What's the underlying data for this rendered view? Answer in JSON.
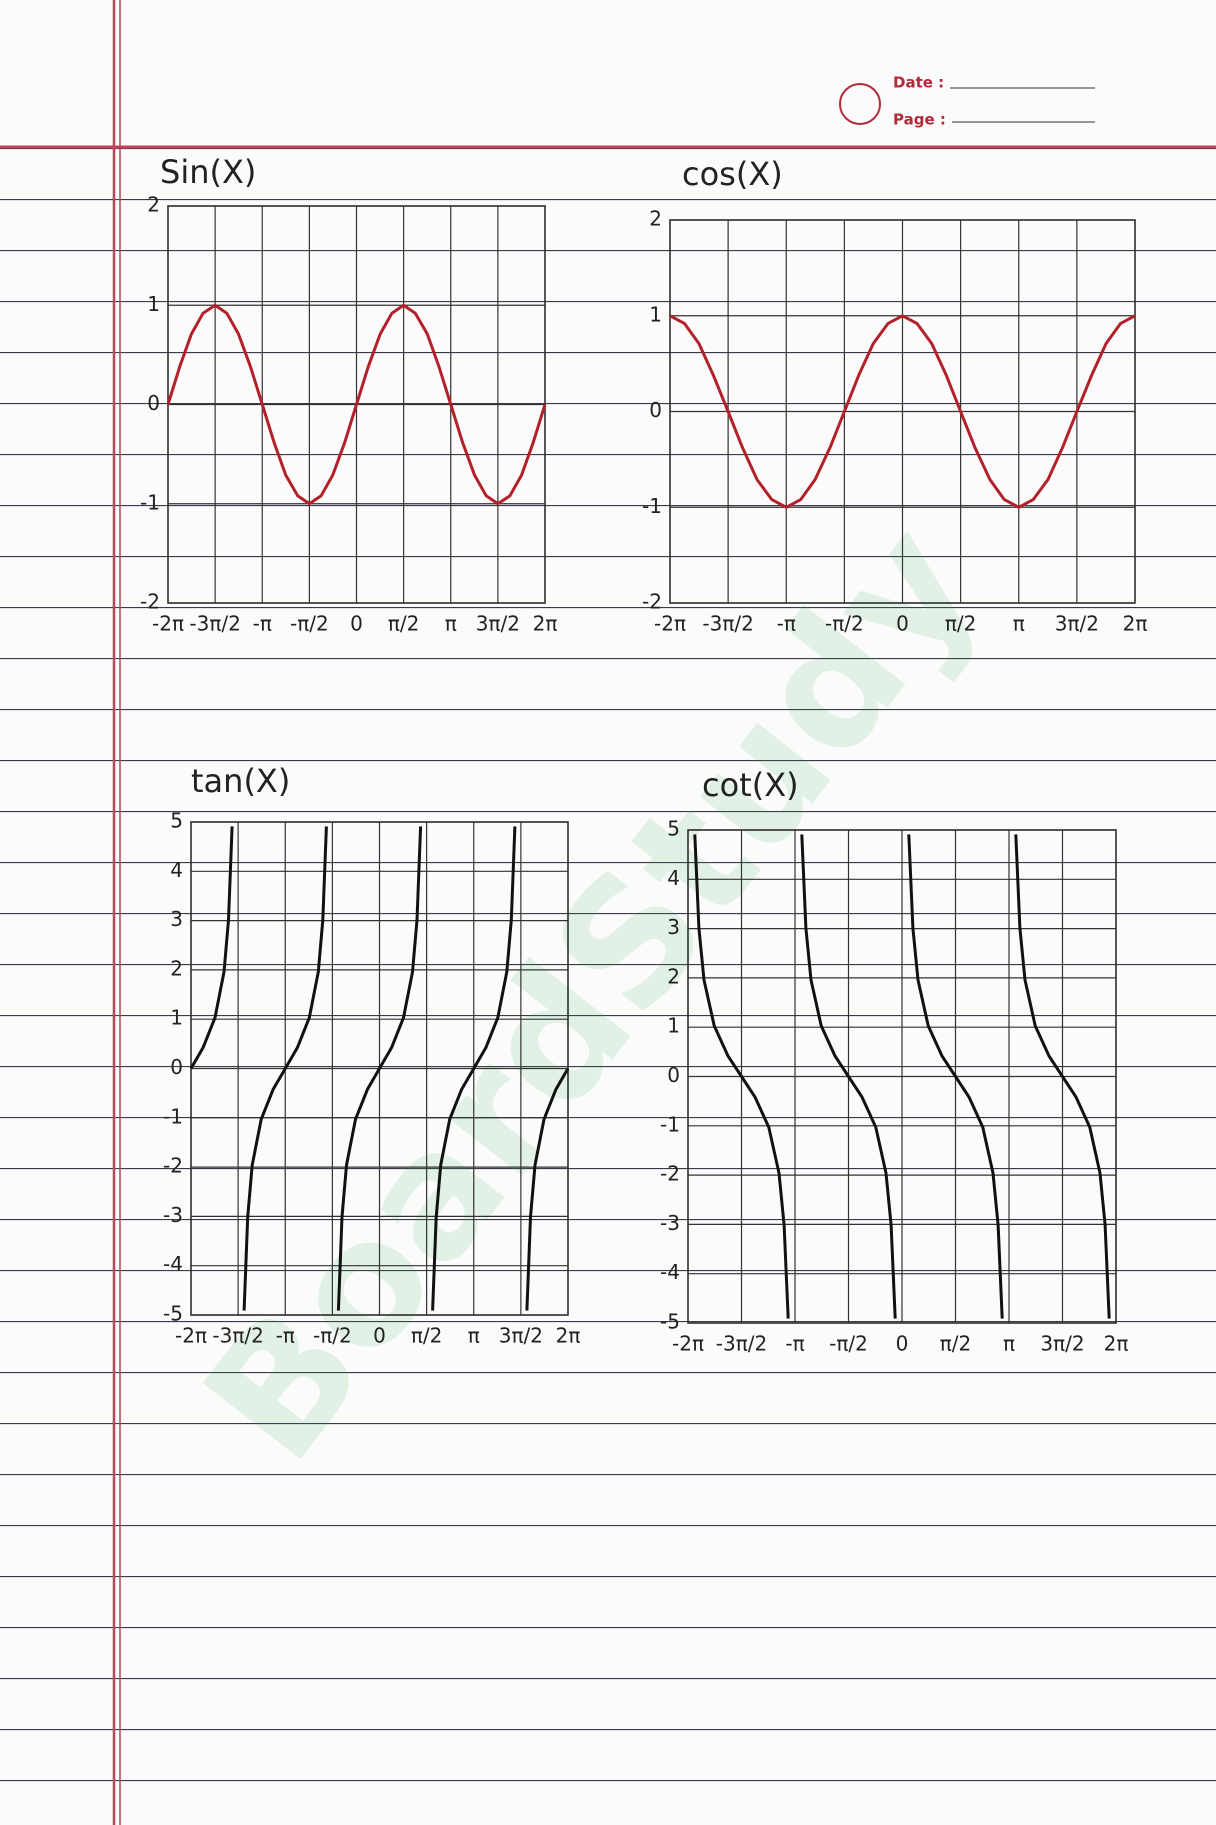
{
  "header": {
    "date_label": "Date :",
    "page_label": "Page :"
  },
  "watermark": "BoardStudy",
  "chart_data": [
    {
      "type": "line",
      "title": "Sin(X)",
      "color": "#b3202a",
      "grid": true,
      "x": [
        -6.28,
        -5.89,
        -5.5,
        -5.11,
        -4.71,
        -4.32,
        -3.93,
        -3.53,
        -3.14,
        -2.75,
        -2.36,
        -1.96,
        -1.57,
        -1.18,
        -0.79,
        -0.39,
        0,
        0.39,
        0.79,
        1.18,
        1.57,
        1.96,
        2.36,
        2.75,
        3.14,
        3.53,
        3.93,
        4.32,
        4.71,
        5.11,
        5.5,
        5.89,
        6.28
      ],
      "values": [
        0,
        0.38,
        0.71,
        0.92,
        1,
        0.92,
        0.71,
        0.38,
        0,
        -0.38,
        -0.71,
        -0.92,
        -1,
        -0.92,
        -0.71,
        -0.38,
        0,
        0.38,
        0.71,
        0.92,
        1,
        0.92,
        0.71,
        0.38,
        0,
        -0.38,
        -0.71,
        -0.92,
        -1,
        -0.92,
        -0.71,
        -0.38,
        0
      ],
      "xlim": [
        -6.28,
        6.28
      ],
      "xticks": [
        {
          "value": -6.28,
          "label": "-2π"
        },
        {
          "value": -4.71,
          "label": "-3π/2"
        },
        {
          "value": -3.14,
          "label": "-π"
        },
        {
          "value": -1.57,
          "label": "-π/2"
        },
        0,
        {
          "value": 1.57,
          "label": "π/2"
        },
        {
          "value": 3.14,
          "label": "π"
        },
        {
          "value": 4.71,
          "label": "3π/2"
        },
        {
          "value": 6.28,
          "label": "2π"
        }
      ],
      "ylim": [
        -2,
        2
      ],
      "yticks": [
        -2,
        -1,
        0,
        1,
        2
      ]
    },
    {
      "type": "line",
      "title": "cos(X)",
      "color": "#b3202a",
      "grid": true,
      "x": [
        -6.28,
        -5.89,
        -5.5,
        -5.11,
        -4.71,
        -4.32,
        -3.93,
        -3.53,
        -3.14,
        -2.75,
        -2.36,
        -1.96,
        -1.57,
        -1.18,
        -0.79,
        -0.39,
        0,
        0.39,
        0.79,
        1.18,
        1.57,
        1.96,
        2.36,
        2.75,
        3.14,
        3.53,
        3.93,
        4.32,
        4.71,
        5.11,
        5.5,
        5.89,
        6.28
      ],
      "values": [
        1,
        0.92,
        0.71,
        0.38,
        0,
        -0.38,
        -0.71,
        -0.92,
        -1,
        -0.92,
        -0.71,
        -0.38,
        0,
        0.38,
        0.71,
        0.92,
        1,
        0.92,
        0.71,
        0.38,
        0,
        -0.38,
        -0.71,
        -0.92,
        -1,
        -0.92,
        -0.71,
        -0.38,
        0,
        0.38,
        0.71,
        0.92,
        1
      ],
      "xlim": [
        -6.28,
        6.28
      ],
      "xticks": [
        {
          "value": -6.28,
          "label": "-2π"
        },
        {
          "value": -4.71,
          "label": "-3π/2"
        },
        {
          "value": -3.14,
          "label": "-π"
        },
        {
          "value": -1.57,
          "label": "-π/2"
        },
        0,
        {
          "value": 1.57,
          "label": "π/2"
        },
        {
          "value": 3.14,
          "label": "π"
        },
        {
          "value": 4.71,
          "label": "3π/2"
        },
        {
          "value": 6.28,
          "label": "2π"
        }
      ],
      "ylim": [
        -2,
        2
      ],
      "yticks": [
        -2,
        -1,
        0,
        1,
        2
      ]
    },
    {
      "type": "line",
      "title": "tan(X)",
      "color": "#111111",
      "grid": true,
      "x": [
        -6.28,
        -5.88,
        -5.48,
        -5.18,
        -5.03,
        -4.91,
        -4.71,
        -4.51,
        -4.39,
        -4.24,
        -3.94,
        -3.54,
        -3.14,
        -2.74,
        -2.34,
        -2.04,
        -1.89,
        -1.77,
        -1.57,
        -1.37,
        -1.25,
        -1.1,
        -0.8,
        -0.4,
        0,
        0.4,
        0.8,
        1.1,
        1.25,
        1.37,
        1.57,
        1.77,
        1.89,
        2.04,
        2.34,
        2.74,
        3.14,
        3.54,
        3.94,
        4.24,
        4.39,
        4.51,
        4.71,
        4.91,
        5.03,
        5.18,
        5.48,
        5.88,
        6.28
      ],
      "values": [
        0,
        0.42,
        1.03,
        1.96,
        3.01,
        4.91,
        null,
        -4.91,
        -3.01,
        -1.96,
        -1.03,
        -0.42,
        0,
        0.42,
        1.03,
        1.96,
        3.01,
        4.91,
        null,
        -4.91,
        -3.01,
        -1.96,
        -1.03,
        -0.42,
        0,
        0.42,
        1.03,
        1.96,
        3.01,
        4.91,
        null,
        -4.91,
        -3.01,
        -1.96,
        -1.03,
        -0.42,
        0,
        0.42,
        1.03,
        1.96,
        3.01,
        4.91,
        null,
        -4.91,
        -3.01,
        -1.96,
        -1.03,
        -0.42,
        0
      ],
      "xlim": [
        -6.28,
        6.28
      ],
      "xticks": [
        {
          "value": -6.28,
          "label": "-2π"
        },
        {
          "value": -4.71,
          "label": "-3π/2"
        },
        {
          "value": -3.14,
          "label": "-π"
        },
        {
          "value": -1.57,
          "label": "-π/2"
        },
        0,
        {
          "value": 1.57,
          "label": "π/2"
        },
        {
          "value": 3.14,
          "label": "π"
        },
        {
          "value": 4.71,
          "label": "3π/2"
        },
        {
          "value": 6.28,
          "label": "2π"
        }
      ],
      "ylim": [
        -5,
        5
      ],
      "yticks": [
        -5,
        -4,
        -3,
        -2,
        -1,
        0,
        1,
        2,
        3,
        4,
        5
      ]
    },
    {
      "type": "line",
      "title": "cot(X)",
      "color": "#111111",
      "grid": true,
      "x": [
        -6.08,
        -5.96,
        -5.81,
        -5.51,
        -5.11,
        -4.71,
        -4.31,
        -3.91,
        -3.61,
        -3.46,
        -3.34,
        -3.14,
        -2.94,
        -2.82,
        -2.67,
        -2.37,
        -1.97,
        -1.57,
        -1.17,
        -0.77,
        -0.47,
        -0.32,
        -0.2,
        0,
        0.2,
        0.32,
        0.47,
        0.77,
        1.17,
        1.57,
        1.97,
        2.37,
        2.67,
        2.82,
        2.94,
        3.14,
        3.34,
        3.46,
        3.61,
        3.91,
        4.31,
        4.71,
        5.11,
        5.51,
        5.81,
        5.96,
        6.08
      ],
      "values": [
        4.91,
        3.01,
        1.96,
        1.03,
        0.42,
        0,
        -0.42,
        -1.03,
        -1.96,
        -3.01,
        -4.91,
        null,
        4.91,
        3.01,
        1.96,
        1.03,
        0.42,
        0,
        -0.42,
        -1.03,
        -1.96,
        -3.01,
        -4.91,
        null,
        4.91,
        3.01,
        1.96,
        1.03,
        0.42,
        0,
        -0.42,
        -1.03,
        -1.96,
        -3.01,
        -4.91,
        null,
        4.91,
        3.01,
        1.96,
        1.03,
        0.42,
        0,
        -0.42,
        -1.03,
        -1.96,
        -3.01,
        -4.91
      ],
      "xlim": [
        -6.28,
        6.28
      ],
      "xticks": [
        {
          "value": -6.28,
          "label": "-2π"
        },
        {
          "value": -4.71,
          "label": "-3π/2"
        },
        {
          "value": -3.14,
          "label": "-π"
        },
        {
          "value": -1.57,
          "label": "-π/2"
        },
        0,
        {
          "value": 1.57,
          "label": "π/2"
        },
        {
          "value": 3.14,
          "label": "π"
        },
        {
          "value": 4.71,
          "label": "3π/2"
        },
        {
          "value": 6.28,
          "label": "2π"
        }
      ],
      "ylim": [
        -5,
        5
      ],
      "yticks": [
        -5,
        -4,
        -3,
        -2,
        -1,
        0,
        1,
        2,
        3,
        4,
        5
      ]
    }
  ]
}
